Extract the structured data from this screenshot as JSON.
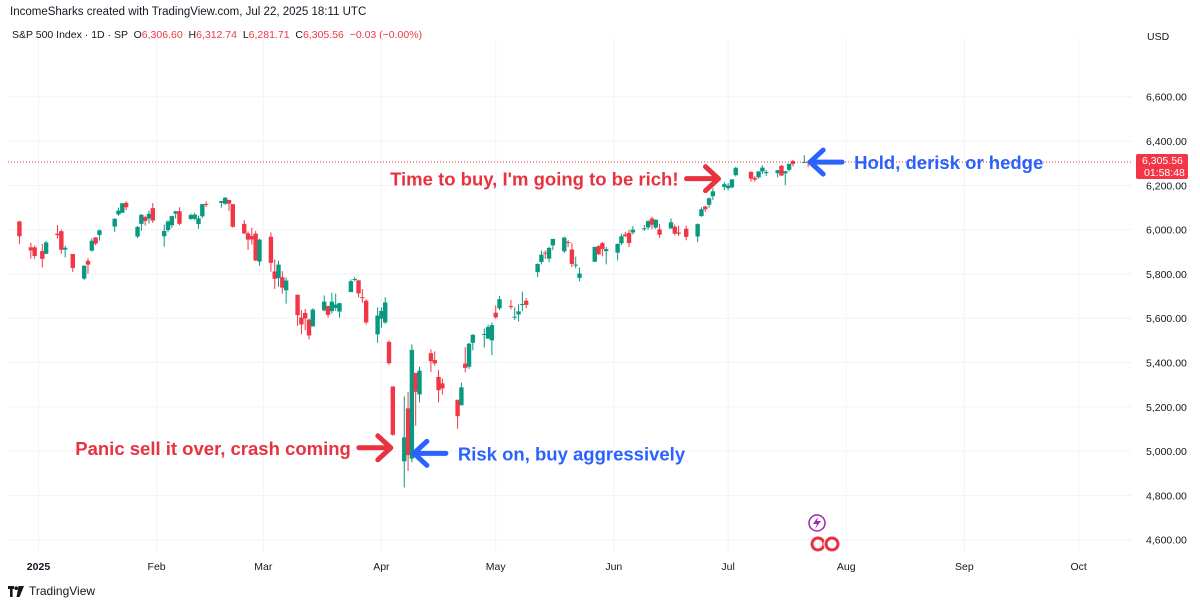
{
  "credit": "IncomeSharks created with TradingView.com, Jul 22, 2025 18:11 UTC",
  "legend": {
    "symbol": "S&P 500 Index · 1D · SP",
    "o_label": "O",
    "o_value": "6,306.60",
    "h_label": "H",
    "h_value": "6,312.74",
    "l_label": "L",
    "l_value": "6,281.71",
    "c_label": "C",
    "c_value": "6,305.56",
    "change": "−0.03 (−0.00%)"
  },
  "brand": "TradingView",
  "colors": {
    "up": "#089981",
    "down": "#f23645",
    "annotation_red": "#e8323f",
    "annotation_blue": "#2962ff",
    "price_tag": "#f23645"
  },
  "chart_data": {
    "type": "candlestick",
    "currency": "USD",
    "last_price_label": "6,305.56",
    "countdown_label": "01:58:48",
    "y_ticks": [
      "4,600.00",
      "4,800.00",
      "5,000.00",
      "5,200.00",
      "5,400.00",
      "5,600.00",
      "5,800.00",
      "6,000.00",
      "6,200.00",
      "6,400.00",
      "6,600.00"
    ],
    "y_tick_values": [
      4600,
      4800,
      5000,
      5200,
      5400,
      5600,
      5800,
      6000,
      6200,
      6400,
      6600
    ],
    "ylim": [
      4540,
      6820
    ],
    "x_ticks": [
      "2025",
      "Feb",
      "Mar",
      "Apr",
      "May",
      "Jun",
      "Jul",
      "Aug",
      "Sep",
      "Oct"
    ],
    "x_tick_dates": [
      "2025-01-01",
      "2025-02-01",
      "2025-03-01",
      "2025-04-01",
      "2025-05-01",
      "2025-06-01",
      "2025-07-01",
      "2025-08-01",
      "2025-09-01",
      "2025-10-01"
    ],
    "xlim": [
      "2024-12-24",
      "2025-10-15"
    ],
    "series": [
      {
        "d": "2024-12-27",
        "o": 6037,
        "h": 6040,
        "l": 5935,
        "c": 5970
      },
      {
        "d": "2024-12-30",
        "o": 5920,
        "h": 5941,
        "l": 5869,
        "c": 5906
      },
      {
        "d": "2024-12-31",
        "o": 5920,
        "h": 5929,
        "l": 5868,
        "c": 5881
      },
      {
        "d": "2025-01-02",
        "o": 5903,
        "h": 5935,
        "l": 5829,
        "c": 5868
      },
      {
        "d": "2025-01-03",
        "o": 5891,
        "h": 5949,
        "l": 5888,
        "c": 5942
      },
      {
        "d": "2025-01-06",
        "o": 5982,
        "h": 6021,
        "l": 5960,
        "c": 5975
      },
      {
        "d": "2025-01-07",
        "o": 5993,
        "h": 6000,
        "l": 5891,
        "c": 5909
      },
      {
        "d": "2025-01-08",
        "o": 5910,
        "h": 5927,
        "l": 5874,
        "c": 5918
      },
      {
        "d": "2025-01-10",
        "o": 5890,
        "h": 5890,
        "l": 5809,
        "c": 5827
      },
      {
        "d": "2025-01-13",
        "o": 5779,
        "h": 5839,
        "l": 5773,
        "c": 5837
      },
      {
        "d": "2025-01-14",
        "o": 5859,
        "h": 5871,
        "l": 5801,
        "c": 5842
      },
      {
        "d": "2025-01-15",
        "o": 5905,
        "h": 5961,
        "l": 5901,
        "c": 5950
      },
      {
        "d": "2025-01-16",
        "o": 5965,
        "h": 5965,
        "l": 5929,
        "c": 5937
      },
      {
        "d": "2025-01-17",
        "o": 5976,
        "h": 6000,
        "l": 5950,
        "c": 5997
      },
      {
        "d": "2025-01-21",
        "o": 6014,
        "h": 6051,
        "l": 5990,
        "c": 6049
      },
      {
        "d": "2025-01-22",
        "o": 6069,
        "h": 6100,
        "l": 6062,
        "c": 6086
      },
      {
        "d": "2025-01-23",
        "o": 6076,
        "h": 6119,
        "l": 6075,
        "c": 6119
      },
      {
        "d": "2025-01-24",
        "o": 6121,
        "h": 6128,
        "l": 6088,
        "c": 6101
      },
      {
        "d": "2025-01-27",
        "o": 5969,
        "h": 6017,
        "l": 5962,
        "c": 6012
      },
      {
        "d": "2025-01-28",
        "o": 6026,
        "h": 6070,
        "l": 5995,
        "c": 6067
      },
      {
        "d": "2025-01-29",
        "o": 6057,
        "h": 6063,
        "l": 6018,
        "c": 6039
      },
      {
        "d": "2025-01-30",
        "o": 6050,
        "h": 6086,
        "l": 6027,
        "c": 6071
      },
      {
        "d": "2025-01-31",
        "o": 6097,
        "h": 6120,
        "l": 6030,
        "c": 6041
      },
      {
        "d": "2025-02-03",
        "o": 5970,
        "h": 6023,
        "l": 5923,
        "c": 5994
      },
      {
        "d": "2025-02-04",
        "o": 5998,
        "h": 6042,
        "l": 5990,
        "c": 6037
      },
      {
        "d": "2025-02-05",
        "o": 6020,
        "h": 6062,
        "l": 6007,
        "c": 6061
      },
      {
        "d": "2025-02-06",
        "o": 6072,
        "h": 6084,
        "l": 6050,
        "c": 6083
      },
      {
        "d": "2025-02-07",
        "o": 6083,
        "h": 6101,
        "l": 6020,
        "c": 6026
      },
      {
        "d": "2025-02-10",
        "o": 6048,
        "h": 6073,
        "l": 6045,
        "c": 6066
      },
      {
        "d": "2025-02-11",
        "o": 6049,
        "h": 6076,
        "l": 6042,
        "c": 6068
      },
      {
        "d": "2025-02-12",
        "o": 6025,
        "h": 6063,
        "l": 6004,
        "c": 6051
      },
      {
        "d": "2025-02-13",
        "o": 6060,
        "h": 6116,
        "l": 6051,
        "c": 6115
      },
      {
        "d": "2025-02-14",
        "o": 6116,
        "h": 6127,
        "l": 6102,
        "c": 6114
      },
      {
        "d": "2025-02-18",
        "o": 6121,
        "h": 6129,
        "l": 6099,
        "c": 6129
      },
      {
        "d": "2025-02-19",
        "o": 6117,
        "h": 6147,
        "l": 6111,
        "c": 6144
      },
      {
        "d": "2025-02-20",
        "o": 6134,
        "h": 6134,
        "l": 6084,
        "c": 6117
      },
      {
        "d": "2025-02-21",
        "o": 6115,
        "h": 6115,
        "l": 6008,
        "c": 6013
      },
      {
        "d": "2025-02-24",
        "o": 6026,
        "h": 6043,
        "l": 5980,
        "c": 5983
      },
      {
        "d": "2025-02-25",
        "o": 5983,
        "h": 5992,
        "l": 5908,
        "c": 5955
      },
      {
        "d": "2025-02-26",
        "o": 5971,
        "h": 6009,
        "l": 5932,
        "c": 5956
      },
      {
        "d": "2025-02-27",
        "o": 5982,
        "h": 5994,
        "l": 5858,
        "c": 5861
      },
      {
        "d": "2025-02-28",
        "o": 5856,
        "h": 5959,
        "l": 5837,
        "c": 5955
      },
      {
        "d": "2025-03-03",
        "o": 5968,
        "h": 5987,
        "l": 5810,
        "c": 5850
      },
      {
        "d": "2025-03-04",
        "o": 5811,
        "h": 5865,
        "l": 5732,
        "c": 5778
      },
      {
        "d": "2025-03-05",
        "o": 5781,
        "h": 5860,
        "l": 5742,
        "c": 5842
      },
      {
        "d": "2025-03-06",
        "o": 5785,
        "h": 5812,
        "l": 5711,
        "c": 5738
      },
      {
        "d": "2025-03-07",
        "o": 5726,
        "h": 5783,
        "l": 5666,
        "c": 5770
      },
      {
        "d": "2025-03-10",
        "o": 5706,
        "h": 5706,
        "l": 5565,
        "c": 5614
      },
      {
        "d": "2025-03-11",
        "o": 5603,
        "h": 5636,
        "l": 5528,
        "c": 5572
      },
      {
        "d": "2025-03-12",
        "o": 5624,
        "h": 5642,
        "l": 5546,
        "c": 5599
      },
      {
        "d": "2025-03-13",
        "o": 5594,
        "h": 5598,
        "l": 5504,
        "c": 5522
      },
      {
        "d": "2025-03-14",
        "o": 5563,
        "h": 5645,
        "l": 5563,
        "c": 5639
      },
      {
        "d": "2025-03-17",
        "o": 5635,
        "h": 5703,
        "l": 5631,
        "c": 5675
      },
      {
        "d": "2025-03-18",
        "o": 5655,
        "h": 5657,
        "l": 5603,
        "c": 5615
      },
      {
        "d": "2025-03-19",
        "o": 5632,
        "h": 5715,
        "l": 5622,
        "c": 5675
      },
      {
        "d": "2025-03-20",
        "o": 5646,
        "h": 5711,
        "l": 5633,
        "c": 5662
      },
      {
        "d": "2025-03-21",
        "o": 5630,
        "h": 5670,
        "l": 5603,
        "c": 5668
      },
      {
        "d": "2025-03-24",
        "o": 5718,
        "h": 5775,
        "l": 5718,
        "c": 5767
      },
      {
        "d": "2025-03-25",
        "o": 5776,
        "h": 5786,
        "l": 5766,
        "c": 5777
      },
      {
        "d": "2025-03-26",
        "o": 5771,
        "h": 5771,
        "l": 5694,
        "c": 5712
      },
      {
        "d": "2025-03-27",
        "o": 5695,
        "h": 5732,
        "l": 5670,
        "c": 5693
      },
      {
        "d": "2025-03-28",
        "o": 5679,
        "h": 5685,
        "l": 5572,
        "c": 5581
      },
      {
        "d": "2025-03-31",
        "o": 5527,
        "h": 5649,
        "l": 5489,
        "c": 5612
      },
      {
        "d": "2025-04-01",
        "o": 5598,
        "h": 5650,
        "l": 5556,
        "c": 5633
      },
      {
        "d": "2025-04-02",
        "o": 5581,
        "h": 5695,
        "l": 5575,
        "c": 5671
      },
      {
        "d": "2025-04-03",
        "o": 5493,
        "h": 5500,
        "l": 5390,
        "c": 5397
      },
      {
        "d": "2025-04-04",
        "o": 5292,
        "h": 5292,
        "l": 5069,
        "c": 5074
      },
      {
        "d": "2025-04-07",
        "o": 4954,
        "h": 5247,
        "l": 4836,
        "c": 5062
      },
      {
        "d": "2025-04-08",
        "o": 5193,
        "h": 5267,
        "l": 4910,
        "c": 4982
      },
      {
        "d": "2025-04-09",
        "o": 4966,
        "h": 5482,
        "l": 4950,
        "c": 5457
      },
      {
        "d": "2025-04-10",
        "o": 5353,
        "h": 5353,
        "l": 5115,
        "c": 5268
      },
      {
        "d": "2025-04-11",
        "o": 5256,
        "h": 5381,
        "l": 5220,
        "c": 5363
      },
      {
        "d": "2025-04-14",
        "o": 5442,
        "h": 5459,
        "l": 5358,
        "c": 5406
      },
      {
        "d": "2025-04-15",
        "o": 5411,
        "h": 5450,
        "l": 5386,
        "c": 5396
      },
      {
        "d": "2025-04-16",
        "o": 5335,
        "h": 5367,
        "l": 5220,
        "c": 5275
      },
      {
        "d": "2025-04-17",
        "o": 5306,
        "h": 5328,
        "l": 5255,
        "c": 5283
      },
      {
        "d": "2025-04-21",
        "o": 5232,
        "h": 5232,
        "l": 5101,
        "c": 5158
      },
      {
        "d": "2025-04-22",
        "o": 5207,
        "h": 5309,
        "l": 5207,
        "c": 5288
      },
      {
        "d": "2025-04-23",
        "o": 5395,
        "h": 5469,
        "l": 5356,
        "c": 5376
      },
      {
        "d": "2025-04-24",
        "o": 5381,
        "h": 5489,
        "l": 5371,
        "c": 5485
      },
      {
        "d": "2025-04-25",
        "o": 5489,
        "h": 5528,
        "l": 5455,
        "c": 5525
      },
      {
        "d": "2025-04-28",
        "o": 5529,
        "h": 5553,
        "l": 5468,
        "c": 5529
      },
      {
        "d": "2025-04-29",
        "o": 5508,
        "h": 5571,
        "l": 5506,
        "c": 5560
      },
      {
        "d": "2025-04-30",
        "o": 5500,
        "h": 5581,
        "l": 5433,
        "c": 5569
      },
      {
        "d": "2025-05-01",
        "o": 5625,
        "h": 5658,
        "l": 5597,
        "c": 5604
      },
      {
        "d": "2025-05-02",
        "o": 5645,
        "h": 5700,
        "l": 5637,
        "c": 5686
      },
      {
        "d": "2025-05-05",
        "o": 5655,
        "h": 5683,
        "l": 5640,
        "c": 5650
      },
      {
        "d": "2025-05-06",
        "o": 5606,
        "h": 5649,
        "l": 5592,
        "c": 5607
      },
      {
        "d": "2025-05-07",
        "o": 5617,
        "h": 5663,
        "l": 5585,
        "c": 5631
      },
      {
        "d": "2025-05-08",
        "o": 5663,
        "h": 5720,
        "l": 5632,
        "c": 5664
      },
      {
        "d": "2025-05-09",
        "o": 5679,
        "h": 5691,
        "l": 5645,
        "c": 5660
      },
      {
        "d": "2025-05-12",
        "o": 5808,
        "h": 5847,
        "l": 5786,
        "c": 5845
      },
      {
        "d": "2025-05-13",
        "o": 5854,
        "h": 5906,
        "l": 5843,
        "c": 5887
      },
      {
        "d": "2025-05-14",
        "o": 5896,
        "h": 5906,
        "l": 5868,
        "c": 5892
      },
      {
        "d": "2025-05-15",
        "o": 5869,
        "h": 5924,
        "l": 5853,
        "c": 5917
      },
      {
        "d": "2025-05-16",
        "o": 5929,
        "h": 5958,
        "l": 5907,
        "c": 5958
      },
      {
        "d": "2025-05-19",
        "o": 5902,
        "h": 5968,
        "l": 5895,
        "c": 5964
      },
      {
        "d": "2025-05-20",
        "o": 5944,
        "h": 5953,
        "l": 5921,
        "c": 5940
      },
      {
        "d": "2025-05-21",
        "o": 5910,
        "h": 5939,
        "l": 5830,
        "c": 5845
      },
      {
        "d": "2025-05-22",
        "o": 5841,
        "h": 5878,
        "l": 5825,
        "c": 5842
      },
      {
        "d": "2025-05-23",
        "o": 5782,
        "h": 5829,
        "l": 5767,
        "c": 5802
      },
      {
        "d": "2025-05-27",
        "o": 5855,
        "h": 5922,
        "l": 5854,
        "c": 5922
      },
      {
        "d": "2025-05-28",
        "o": 5925,
        "h": 5930,
        "l": 5885,
        "c": 5889
      },
      {
        "d": "2025-05-29",
        "o": 5939,
        "h": 5944,
        "l": 5879,
        "c": 5913
      },
      {
        "d": "2025-05-30",
        "o": 5903,
        "h": 5922,
        "l": 5843,
        "c": 5912
      },
      {
        "d": "2025-06-02",
        "o": 5896,
        "h": 5937,
        "l": 5861,
        "c": 5936
      },
      {
        "d": "2025-06-03",
        "o": 5938,
        "h": 5981,
        "l": 5929,
        "c": 5970
      },
      {
        "d": "2025-06-04",
        "o": 5978,
        "h": 5990,
        "l": 5966,
        "c": 5971
      },
      {
        "d": "2025-06-05",
        "o": 5985,
        "h": 5999,
        "l": 5921,
        "c": 5939
      },
      {
        "d": "2025-06-06",
        "o": 5987,
        "h": 6016,
        "l": 5978,
        "c": 6000
      },
      {
        "d": "2025-06-09",
        "o": 6005,
        "h": 6021,
        "l": 5994,
        "c": 6006
      },
      {
        "d": "2025-06-10",
        "o": 6010,
        "h": 6043,
        "l": 6000,
        "c": 6038
      },
      {
        "d": "2025-06-11",
        "o": 6050,
        "h": 6059,
        "l": 6002,
        "c": 6022
      },
      {
        "d": "2025-06-12",
        "o": 6009,
        "h": 6045,
        "l": 6003,
        "c": 6045
      },
      {
        "d": "2025-06-13",
        "o": 6001,
        "h": 6026,
        "l": 5963,
        "c": 5977
      },
      {
        "d": "2025-06-16",
        "o": 6005,
        "h": 6050,
        "l": 6004,
        "c": 6033
      },
      {
        "d": "2025-06-17",
        "o": 6013,
        "h": 6023,
        "l": 5974,
        "c": 5982
      },
      {
        "d": "2025-06-18",
        "o": 5987,
        "h": 6018,
        "l": 5971,
        "c": 5981
      },
      {
        "d": "2025-06-20",
        "o": 6004,
        "h": 6018,
        "l": 5952,
        "c": 5967
      },
      {
        "d": "2025-06-23",
        "o": 5969,
        "h": 6028,
        "l": 5943,
        "c": 6025
      },
      {
        "d": "2025-06-24",
        "o": 6061,
        "h": 6101,
        "l": 6058,
        "c": 6092
      },
      {
        "d": "2025-06-25",
        "o": 6104,
        "h": 6108,
        "l": 6080,
        "c": 6092
      },
      {
        "d": "2025-06-26",
        "o": 6112,
        "h": 6146,
        "l": 6099,
        "c": 6141
      },
      {
        "d": "2025-06-27",
        "o": 6151,
        "h": 6187,
        "l": 6133,
        "c": 6173
      },
      {
        "d": "2025-06-30",
        "o": 6193,
        "h": 6215,
        "l": 6178,
        "c": 6205
      },
      {
        "d": "2025-07-01",
        "o": 6187,
        "h": 6210,
        "l": 6177,
        "c": 6198
      },
      {
        "d": "2025-07-02",
        "o": 6191,
        "h": 6227,
        "l": 6187,
        "c": 6227
      },
      {
        "d": "2025-07-03",
        "o": 6246,
        "h": 6284,
        "l": 6240,
        "c": 6279
      },
      {
        "d": "2025-07-07",
        "o": 6261,
        "h": 6263,
        "l": 6216,
        "c": 6230
      },
      {
        "d": "2025-07-08",
        "o": 6233,
        "h": 6242,
        "l": 6217,
        "c": 6226
      },
      {
        "d": "2025-07-09",
        "o": 6236,
        "h": 6264,
        "l": 6230,
        "c": 6263
      },
      {
        "d": "2025-07-10",
        "o": 6263,
        "h": 6290,
        "l": 6251,
        "c": 6280
      },
      {
        "d": "2025-07-11",
        "o": 6255,
        "h": 6269,
        "l": 6242,
        "c": 6260
      },
      {
        "d": "2025-07-14",
        "o": 6255,
        "h": 6270,
        "l": 6236,
        "c": 6268
      },
      {
        "d": "2025-07-15",
        "o": 6288,
        "h": 6292,
        "l": 6243,
        "c": 6244
      },
      {
        "d": "2025-07-16",
        "o": 6254,
        "h": 6265,
        "l": 6201,
        "c": 6264
      },
      {
        "d": "2025-07-17",
        "o": 6270,
        "h": 6298,
        "l": 6263,
        "c": 6297
      },
      {
        "d": "2025-07-18",
        "o": 6310,
        "h": 6315,
        "l": 6285,
        "c": 6296
      },
      {
        "d": "2025-07-21",
        "o": 6304,
        "h": 6336,
        "l": 6303,
        "c": 6305
      },
      {
        "d": "2025-07-22",
        "o": 6306.6,
        "h": 6312.74,
        "l": 6281.71,
        "c": 6305.56
      }
    ],
    "annotations": [
      {
        "text": "Time to buy, I'm going to be rich!",
        "color": "red",
        "arrow": "right",
        "target_date": "2025-06-29",
        "target_price": 6230
      },
      {
        "text": "Hold, derisk or hedge",
        "color": "blue",
        "arrow": "left",
        "target_date": "2025-07-22",
        "target_price": 6305
      },
      {
        "text": "Panic sell it over, crash coming",
        "color": "red",
        "arrow": "right",
        "target_date": "2025-04-04",
        "target_price": 5015
      },
      {
        "text": "Risk on, buy aggressively",
        "color": "blue",
        "arrow": "left",
        "target_date": "2025-04-09",
        "target_price": 4990
      }
    ]
  }
}
